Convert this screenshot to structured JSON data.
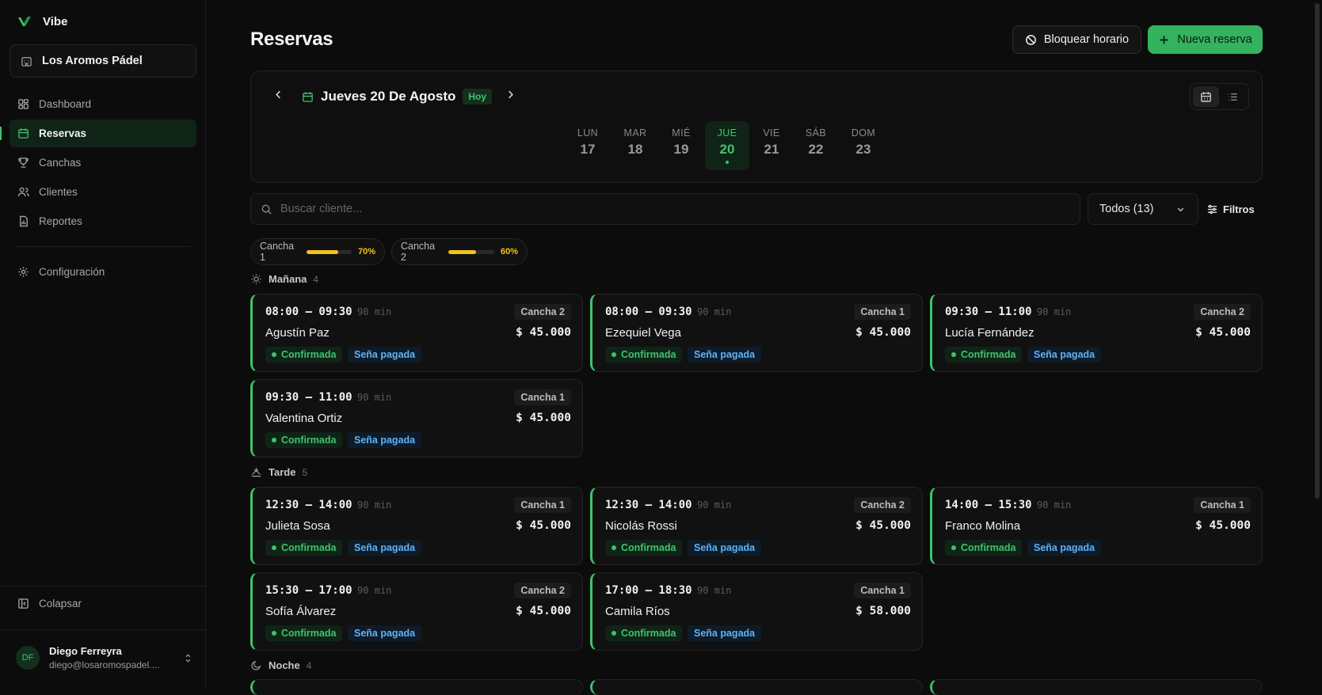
{
  "brand": {
    "name": "Vibe"
  },
  "venue": {
    "name": "Los Aromos Pádel"
  },
  "nav": {
    "items": [
      {
        "label": "Dashboard",
        "icon": "dashboard-icon"
      },
      {
        "label": "Reservas",
        "icon": "calendar-icon",
        "active": true
      },
      {
        "label": "Canchas",
        "icon": "trophy-icon"
      },
      {
        "label": "Clientes",
        "icon": "users-icon"
      },
      {
        "label": "Reportes",
        "icon": "report-icon"
      }
    ],
    "settings_label": "Configuración",
    "collapse_label": "Colapsar"
  },
  "user": {
    "initials": "DF",
    "name": "Diego Ferreyra",
    "email": "diego@losaromospadel...."
  },
  "header": {
    "title": "Reservas",
    "block_label": "Bloquear horario",
    "new_label": "Nueva reserva"
  },
  "calendar": {
    "date_label": "Jueves 20 De Agosto",
    "today_label": "Hoy",
    "days": [
      {
        "name": "LUN",
        "num": "17"
      },
      {
        "name": "MAR",
        "num": "18"
      },
      {
        "name": "MIÉ",
        "num": "19"
      },
      {
        "name": "JUE",
        "num": "20",
        "active": true
      },
      {
        "name": "VIE",
        "num": "21"
      },
      {
        "name": "SÁB",
        "num": "22"
      },
      {
        "name": "DOM",
        "num": "23"
      }
    ]
  },
  "search": {
    "placeholder": "Buscar cliente...",
    "value": ""
  },
  "filter": {
    "selected": "Todos (13)",
    "filters_label": "Filtros"
  },
  "occupancy": [
    {
      "court": "Cancha 1",
      "pct_label": "70%",
      "fraction": 0.7
    },
    {
      "court": "Cancha 2",
      "pct_label": "60%",
      "fraction": 0.6
    }
  ],
  "sections": {
    "morning": {
      "label": "Mañana",
      "count": "4"
    },
    "afternoon": {
      "label": "Tarde",
      "count": "5"
    },
    "night": {
      "label": "Noche",
      "count": "4"
    }
  },
  "bookings": [
    {
      "time": "08:00 – 09:30",
      "duration": "90 min",
      "court": "Cancha 2",
      "client": "Agustín Paz",
      "price": "$ 45.000",
      "status": "Confirmada",
      "payment": "Seña pagada"
    },
    {
      "time": "08:00 – 09:30",
      "duration": "90 min",
      "court": "Cancha 1",
      "client": "Ezequiel Vega",
      "price": "$ 45.000",
      "status": "Confirmada",
      "payment": "Seña pagada"
    },
    {
      "time": "09:30 – 11:00",
      "duration": "90 min",
      "court": "Cancha 2",
      "client": "Lucía Fernández",
      "price": "$ 45.000",
      "status": "Confirmada",
      "payment": "Seña pagada"
    },
    {
      "time": "09:30 – 11:00",
      "duration": "90 min",
      "court": "Cancha 1",
      "client": "Valentina Ortiz",
      "price": "$ 45.000",
      "status": "Confirmada",
      "payment": "Seña pagada"
    },
    {
      "time": "12:30 – 14:00",
      "duration": "90 min",
      "court": "Cancha 1",
      "client": "Julieta Sosa",
      "price": "$ 45.000",
      "status": "Confirmada",
      "payment": "Seña pagada"
    },
    {
      "time": "12:30 – 14:00",
      "duration": "90 min",
      "court": "Cancha 2",
      "client": "Nicolás Rossi",
      "price": "$ 45.000",
      "status": "Confirmada",
      "payment": "Seña pagada"
    },
    {
      "time": "14:00 – 15:30",
      "duration": "90 min",
      "court": "Cancha 1",
      "client": "Franco Molina",
      "price": "$ 45.000",
      "status": "Confirmada",
      "payment": "Seña pagada"
    },
    {
      "time": "15:30 – 17:00",
      "duration": "90 min",
      "court": "Cancha 2",
      "client": "Sofía Álvarez",
      "price": "$ 45.000",
      "status": "Confirmada",
      "payment": "Seña pagada"
    },
    {
      "time": "17:00 – 18:30",
      "duration": "90 min",
      "court": "Cancha 1",
      "client": "Camila Ríos",
      "price": "$ 58.000",
      "status": "Confirmada",
      "payment": "Seña pagada"
    }
  ],
  "colors": {
    "accent": "#34b35e",
    "occupancy": "#f2c21b",
    "payment": "#5fb3f6"
  }
}
